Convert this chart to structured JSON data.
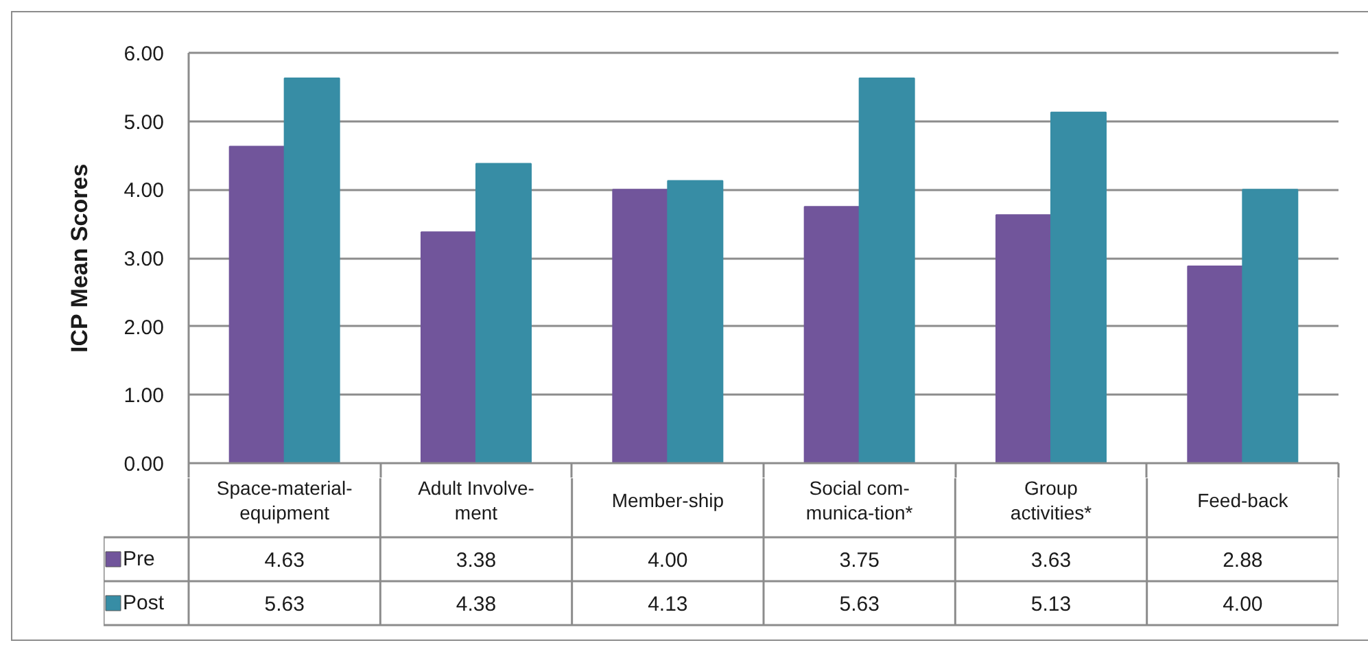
{
  "chart_data": {
    "type": "bar",
    "ylabel": "ICP Mean Scores",
    "categories": [
      "Space-material-equipment",
      "Adult Involve-ment",
      "Member-ship",
      "Social com-munica-tion*",
      "Group activities*",
      "Feed-back"
    ],
    "series": [
      {
        "name": "Pre",
        "color": "#71559b",
        "values": [
          4.63,
          3.38,
          4.0,
          3.75,
          3.63,
          2.88
        ],
        "value_labels": [
          "4.63",
          "3.38",
          "4.00",
          "3.75",
          "3.63",
          "2.88"
        ]
      },
      {
        "name": "Post",
        "color": "#378da5",
        "values": [
          5.63,
          4.38,
          4.13,
          5.63,
          5.13,
          4.0
        ],
        "value_labels": [
          "5.63",
          "4.38",
          "4.13",
          "5.63",
          "5.13",
          "4.00"
        ]
      }
    ],
    "ylim": [
      0,
      6
    ],
    "yticks": [
      {
        "value": 0,
        "label": "0.00"
      },
      {
        "value": 1,
        "label": "1.00"
      },
      {
        "value": 2,
        "label": "2.00"
      },
      {
        "value": 3,
        "label": "3.00"
      },
      {
        "value": 4,
        "label": "4.00"
      },
      {
        "value": 5,
        "label": "5.00"
      },
      {
        "value": 6,
        "label": "6.00"
      }
    ],
    "grid": "y",
    "legend": "bottom left"
  }
}
